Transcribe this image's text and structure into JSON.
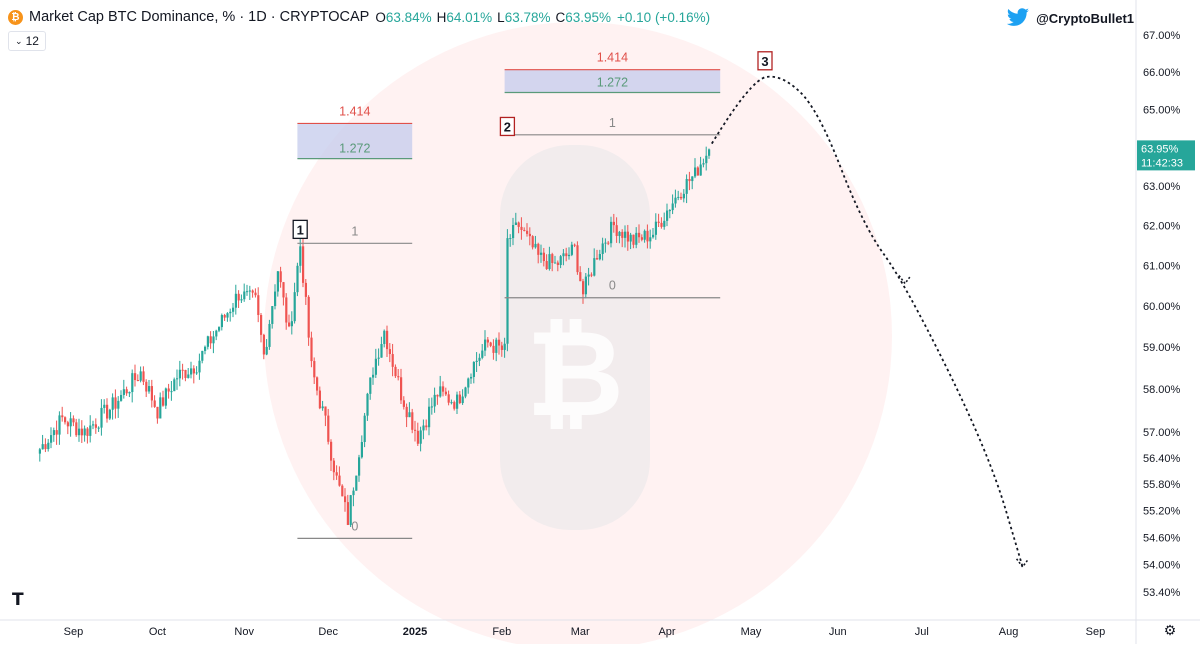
{
  "header": {
    "title": "Market Cap BTC Dominance, % · 1D · CRYPTOCAP",
    "ohlc": [
      {
        "key": "O",
        "value": "63.84%"
      },
      {
        "key": "H",
        "value": "64.01%"
      },
      {
        "key": "L",
        "value": "63.78%"
      },
      {
        "key": "C",
        "value": "63.95%"
      }
    ],
    "change": "+0.10 (+0.16%)",
    "interval_value": "12",
    "coin_symbol": "₿",
    "author": "@CryptoBullet1"
  },
  "price_badge": {
    "value": "63.95%",
    "countdown": "11:42:33"
  },
  "colors": {
    "up": "#26a69a",
    "down": "#ef5350",
    "badge": "#26a69a",
    "fib_red": "#e0504a",
    "fib_green": "#5a9a7a",
    "fib_gray": "#888888",
    "fib_box": "#c4cbec",
    "watermark": "#ffeaea"
  },
  "chart_data": {
    "type": "candlestick",
    "symbol": "Market Cap BTC Dominance, %",
    "timeframe": "1D",
    "y_axis": {
      "ticks": [
        "67.00%",
        "66.00%",
        "65.00%",
        "64.00%",
        "63.00%",
        "62.00%",
        "61.00%",
        "60.00%",
        "59.00%",
        "58.00%",
        "57.00%",
        "56.40%",
        "55.80%",
        "55.20%",
        "54.60%",
        "54.00%",
        "53.40%"
      ],
      "scale": "log"
    },
    "x_axis": {
      "labels": [
        "Sep",
        "Oct",
        "Nov",
        "Dec",
        "2025",
        "Feb",
        "Mar",
        "Apr",
        "May",
        "Jun",
        "Jul",
        "Aug",
        "Sep"
      ],
      "bold": [
        "2025"
      ]
    },
    "price_anchors": [
      {
        "date": "2024-08-20",
        "close": 56.6
      },
      {
        "date": "2024-08-28",
        "close": 57.3
      },
      {
        "date": "2024-09-05",
        "close": 57.0
      },
      {
        "date": "2024-09-15",
        "close": 57.6
      },
      {
        "date": "2024-09-25",
        "close": 58.4
      },
      {
        "date": "2024-10-01",
        "close": 57.5
      },
      {
        "date": "2024-10-08",
        "close": 58.3
      },
      {
        "date": "2024-10-15",
        "close": 58.6
      },
      {
        "date": "2024-10-22",
        "close": 59.4
      },
      {
        "date": "2024-10-30",
        "close": 60.3
      },
      {
        "date": "2024-11-05",
        "close": 60.1
      },
      {
        "date": "2024-11-08",
        "close": 58.8
      },
      {
        "date": "2024-11-13",
        "close": 60.9
      },
      {
        "date": "2024-11-17",
        "close": 59.3
      },
      {
        "date": "2024-11-21",
        "close": 61.5
      },
      {
        "date": "2024-11-25",
        "close": 58.5
      },
      {
        "date": "2024-11-30",
        "close": 57.2
      },
      {
        "date": "2024-12-04",
        "close": 55.9
      },
      {
        "date": "2024-12-08",
        "close": 55.0
      },
      {
        "date": "2024-12-12",
        "close": 56.6
      },
      {
        "date": "2024-12-17",
        "close": 58.5
      },
      {
        "date": "2024-12-21",
        "close": 59.4
      },
      {
        "date": "2024-12-27",
        "close": 57.9
      },
      {
        "date": "2025-01-02",
        "close": 56.9
      },
      {
        "date": "2025-01-09",
        "close": 57.9
      },
      {
        "date": "2025-01-16",
        "close": 57.7
      },
      {
        "date": "2025-01-21",
        "close": 58.5
      },
      {
        "date": "2025-01-27",
        "close": 59.1
      },
      {
        "date": "2025-02-02",
        "close": 58.9
      },
      {
        "date": "2025-02-03",
        "close": 61.6
      },
      {
        "date": "2025-02-07",
        "close": 62.0
      },
      {
        "date": "2025-02-14",
        "close": 61.2
      },
      {
        "date": "2025-02-20",
        "close": 61.0
      },
      {
        "date": "2025-02-27",
        "close": 61.4
      },
      {
        "date": "2025-03-02",
        "close": 60.3
      },
      {
        "date": "2025-03-07",
        "close": 61.3
      },
      {
        "date": "2025-03-13",
        "close": 62.0
      },
      {
        "date": "2025-03-20",
        "close": 61.6
      },
      {
        "date": "2025-03-27",
        "close": 61.8
      },
      {
        "date": "2025-04-02",
        "close": 62.5
      },
      {
        "date": "2025-04-07",
        "close": 63.0
      },
      {
        "date": "2025-04-11",
        "close": 63.3
      },
      {
        "date": "2025-04-13",
        "close": 63.6
      },
      {
        "date": "2025-04-16",
        "close": 63.95
      }
    ],
    "fib_extensions": [
      {
        "levels": [
          {
            "ratio": "1.414",
            "value": 64.63,
            "color": "red"
          },
          {
            "ratio": "1.272",
            "value": 63.71,
            "color": "green"
          },
          {
            "ratio": "1",
            "value": 61.55,
            "color": "gray"
          },
          {
            "ratio": "0",
            "value": 54.58,
            "color": "gray"
          }
        ],
        "date_range": [
          "2024-11-20",
          "2024-12-31"
        ]
      },
      {
        "levels": [
          {
            "ratio": "1.414",
            "value": 66.06,
            "color": "red"
          },
          {
            "ratio": "1.272",
            "value": 65.45,
            "color": "green"
          },
          {
            "ratio": "1",
            "value": 64.33,
            "color": "gray"
          },
          {
            "ratio": "0",
            "value": 60.2,
            "color": "gray"
          }
        ],
        "date_range": [
          "2025-02-02",
          "2025-04-20"
        ]
      }
    ],
    "wave_labels": [
      {
        "label": "1",
        "date": "2024-11-21",
        "value": 61.9
      },
      {
        "label": "2",
        "date": "2025-02-03",
        "value": 64.55
      },
      {
        "label": "3",
        "date": "2025-05-06",
        "value": 66.3
      }
    ],
    "projection_path": [
      {
        "date": "2025-04-17",
        "value": 64.1
      },
      {
        "date": "2025-05-01",
        "value": 65.8
      },
      {
        "date": "2025-05-12",
        "value": 65.93
      },
      {
        "date": "2025-05-25",
        "value": 65.0
      },
      {
        "date": "2025-06-10",
        "value": 62.0
      },
      {
        "date": "2025-06-25",
        "value": 60.55
      },
      {
        "date": "2025-07-25",
        "value": 56.5
      },
      {
        "date": "2025-08-06",
        "value": 53.95
      }
    ],
    "projection_arrows": [
      {
        "date": "2025-06-25",
        "value": 60.55
      },
      {
        "date": "2025-08-06",
        "value": 53.95
      }
    ]
  }
}
